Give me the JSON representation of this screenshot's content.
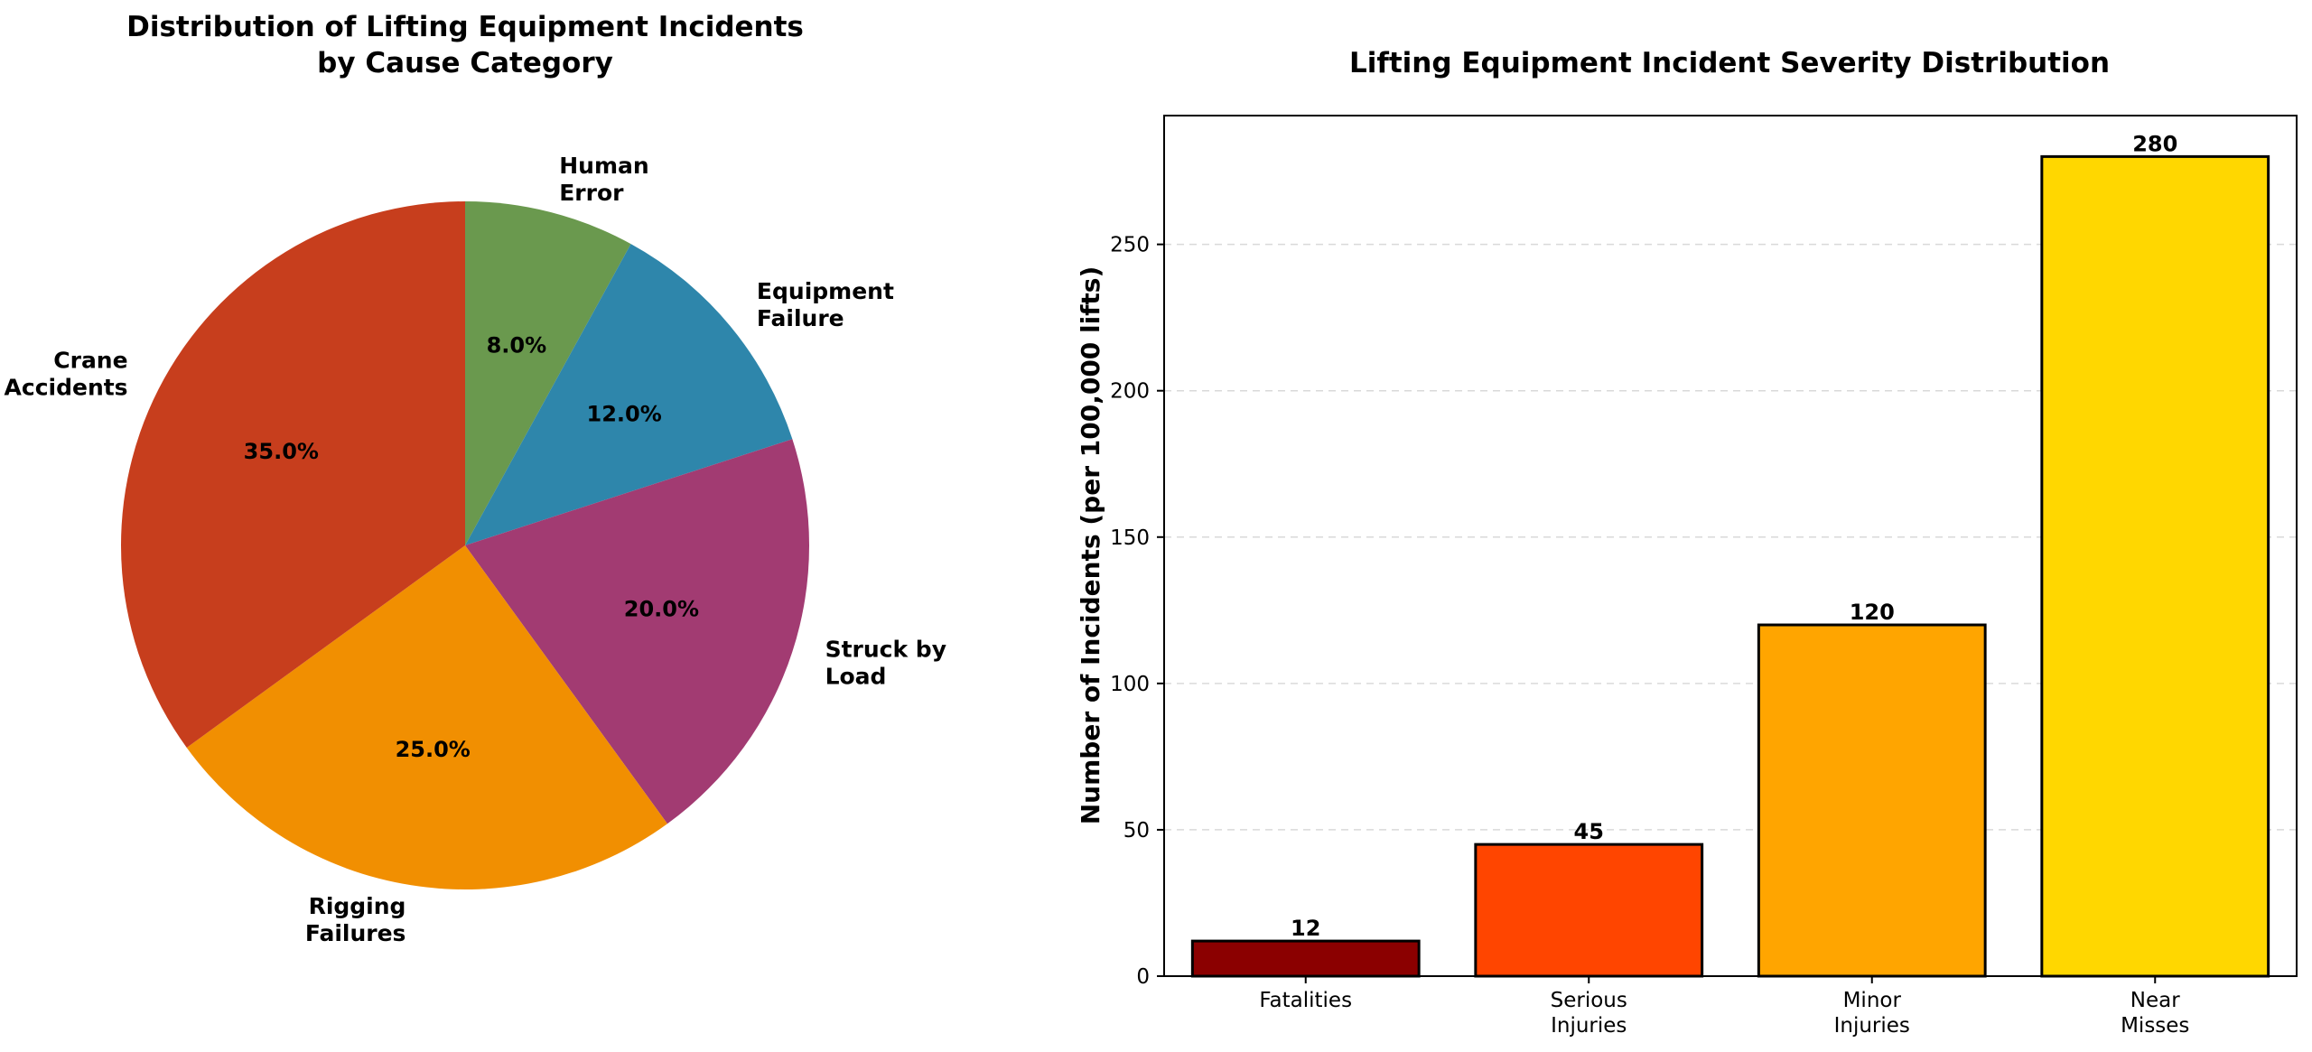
{
  "chart_data": [
    {
      "type": "pie",
      "title": [
        "Distribution of Lifting Equipment Incidents",
        "by Cause Category"
      ],
      "slices": [
        {
          "label": [
            "Human",
            "Error"
          ],
          "value": 8.0,
          "pct_label": "8.0%",
          "color": "#6A994E"
        },
        {
          "label": [
            "Equipment",
            "Failure"
          ],
          "value": 12.0,
          "pct_label": "12.0%",
          "color": "#2E86AB"
        },
        {
          "label": [
            "Struck by",
            "Load"
          ],
          "value": 20.0,
          "pct_label": "20.0%",
          "color": "#A23B72"
        },
        {
          "label": [
            "Rigging",
            "Failures"
          ],
          "value": 25.0,
          "pct_label": "25.0%",
          "color": "#F18F01"
        },
        {
          "label": [
            "Crane",
            "Accidents"
          ],
          "value": 35.0,
          "pct_label": "35.0%",
          "color": "#C73E1D"
        }
      ],
      "start": "top (12 o'clock)",
      "direction": "clockwise"
    },
    {
      "type": "bar",
      "title": "Lifting Equipment Incident Severity Distribution",
      "categories": [
        [
          "Fatalities"
        ],
        [
          "Serious",
          "Injuries"
        ],
        [
          "Minor",
          "Injuries"
        ],
        [
          "Near",
          "Misses"
        ]
      ],
      "values": [
        12,
        45,
        120,
        280
      ],
      "colors": [
        "#8B0000",
        "#FF4500",
        "#FFA500",
        "#FFD700"
      ],
      "ylabel": "Number of Incidents (per 100,000 lifts)",
      "xlabel": "",
      "ylim": [
        0,
        294
      ],
      "yticks": [
        0,
        50,
        100,
        150,
        200,
        250
      ],
      "grid": "y dashed"
    }
  ]
}
